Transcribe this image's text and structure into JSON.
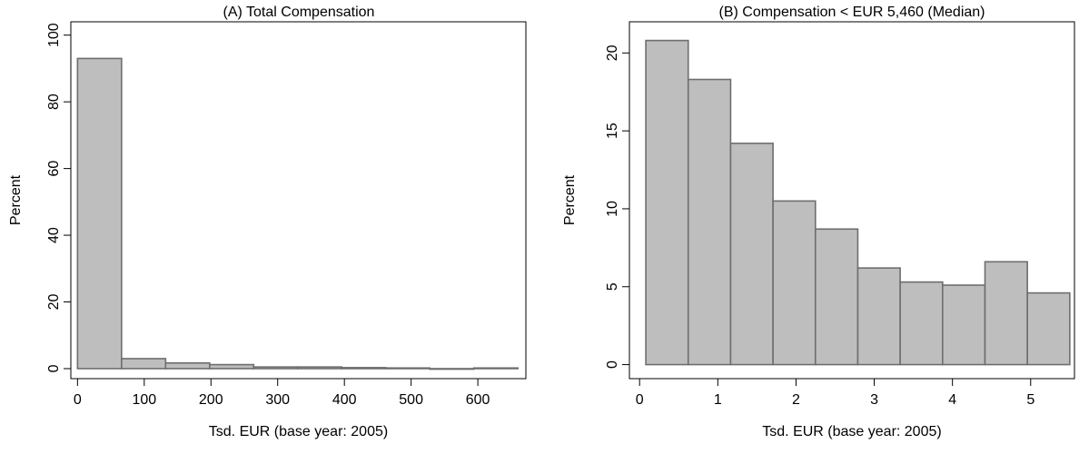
{
  "chart_data": [
    {
      "type": "bar",
      "title": "(A) Total Compensation",
      "xlabel": "Tsd. EUR (base year: 2005)",
      "ylabel": "Percent",
      "xlim": [
        -10,
        672
      ],
      "ylim": [
        -3,
        104
      ],
      "xticks": [
        0,
        100,
        200,
        300,
        400,
        500,
        600
      ],
      "yticks": [
        0,
        20,
        40,
        60,
        80,
        100
      ],
      "grid": false,
      "bin_edges": [
        0,
        66,
        132,
        198,
        264,
        330,
        396,
        462,
        528,
        594,
        660
      ],
      "values": [
        93,
        3.0,
        1.7,
        1.2,
        0.5,
        0.5,
        0.3,
        0.2,
        0.0,
        0.2
      ],
      "bar_color": "#bebebe",
      "bar_edge_color": "#6e6e6e"
    },
    {
      "type": "bar",
      "title": "(B) Compensation < EUR 5,460 (Median)",
      "xlabel": "Tsd. EUR (base year: 2005)",
      "ylabel": "Percent",
      "xlim": [
        -0.13,
        5.56
      ],
      "ylim": [
        -0.9,
        22.0
      ],
      "xticks": [
        0,
        1,
        2,
        3,
        4,
        5
      ],
      "yticks": [
        0,
        5,
        10,
        15,
        20
      ],
      "grid": false,
      "bin_edges": [
        0.08,
        0.622,
        1.164,
        1.706,
        2.248,
        2.79,
        3.332,
        3.874,
        4.416,
        4.958,
        5.5
      ],
      "values": [
        20.8,
        18.3,
        14.2,
        10.5,
        8.7,
        6.2,
        5.3,
        5.1,
        6.6,
        4.6
      ],
      "bar_color": "#bebebe",
      "bar_edge_color": "#6e6e6e"
    }
  ]
}
